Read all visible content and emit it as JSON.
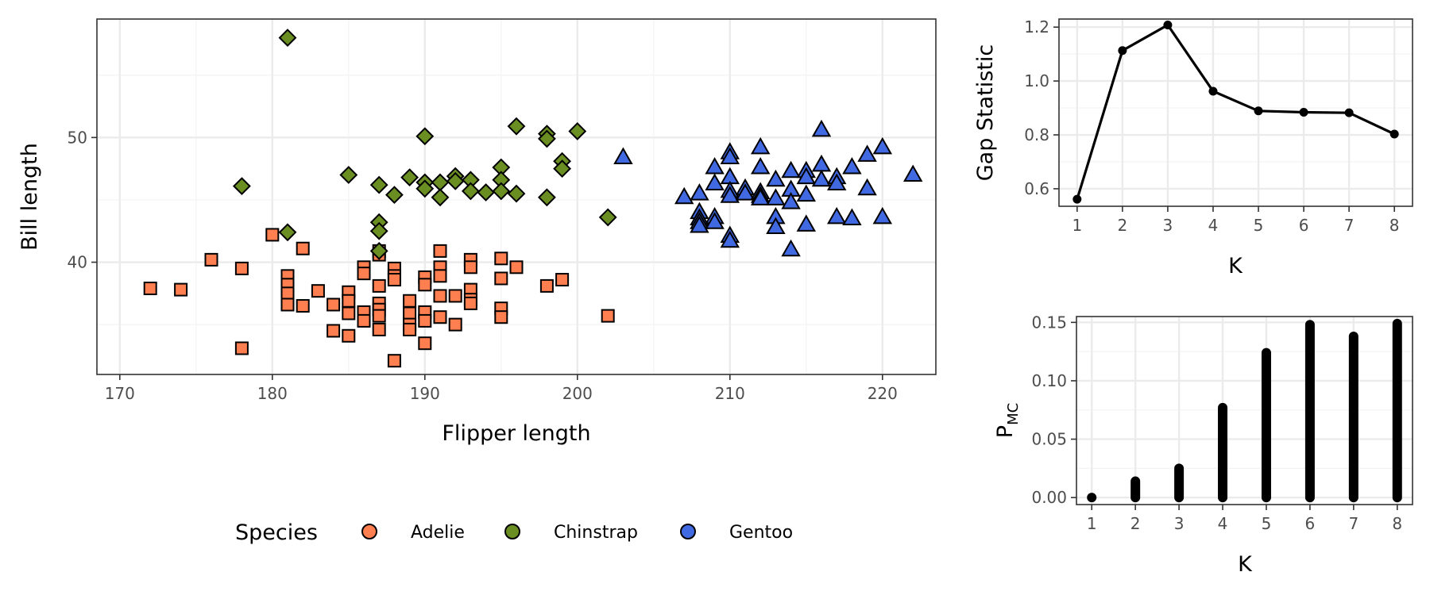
{
  "chart_data": [
    {
      "type": "scatter",
      "xlabel": "Flipper length",
      "ylabel": "Bill length",
      "xlim": [
        168.5,
        223.5
      ],
      "ylim": [
        31,
        59.5
      ],
      "x_ticks": [
        170,
        180,
        190,
        200,
        210,
        220
      ],
      "y_ticks": [
        40,
        50
      ],
      "grid": true,
      "legend": {
        "title": "Species",
        "placement": "bottom",
        "entries": [
          "Adelie",
          "Chinstrap",
          "Gentoo"
        ]
      },
      "series": [
        {
          "name": "Adelie",
          "color": "#FF7F50",
          "marker": "square",
          "points": [
            [
              172,
              37.9
            ],
            [
              174,
              37.8
            ],
            [
              176,
              40.2
            ],
            [
              178,
              39.5
            ],
            [
              178,
              33.1
            ],
            [
              180,
              42.2
            ],
            [
              181,
              38.9
            ],
            [
              181,
              38.2
            ],
            [
              181,
              37.5
            ],
            [
              181,
              36.6
            ],
            [
              182,
              41.1
            ],
            [
              182,
              36.5
            ],
            [
              183,
              37.7
            ],
            [
              184,
              36.6
            ],
            [
              184,
              34.5
            ],
            [
              185,
              37.6
            ],
            [
              185,
              36.9
            ],
            [
              185,
              35.9
            ],
            [
              185,
              34.1
            ],
            [
              186,
              39.6
            ],
            [
              186,
              39.1
            ],
            [
              186,
              36.0
            ],
            [
              186,
              35.3
            ],
            [
              187,
              40.9
            ],
            [
              187,
              40.6
            ],
            [
              187,
              38.1
            ],
            [
              187,
              36.7
            ],
            [
              187,
              36.2
            ],
            [
              187,
              35.7
            ],
            [
              187,
              34.6
            ],
            [
              188,
              39.5
            ],
            [
              188,
              38.9
            ],
            [
              188,
              38.6
            ],
            [
              188,
              32.1
            ],
            [
              189,
              36.9
            ],
            [
              189,
              35.9
            ],
            [
              189,
              35.0
            ],
            [
              189,
              34.6
            ],
            [
              190,
              38.8
            ],
            [
              190,
              38.2
            ],
            [
              190,
              36.0
            ],
            [
              190,
              35.3
            ],
            [
              190,
              33.5
            ],
            [
              191,
              40.9
            ],
            [
              191,
              39.6
            ],
            [
              191,
              38.9
            ],
            [
              191,
              37.3
            ],
            [
              191,
              35.6
            ],
            [
              192,
              37.3
            ],
            [
              192,
              35.0
            ],
            [
              193,
              40.2
            ],
            [
              193,
              39.6
            ],
            [
              193,
              37.8
            ],
            [
              193,
              37.0
            ],
            [
              193,
              36.7
            ],
            [
              195,
              40.3
            ],
            [
              195,
              38.7
            ],
            [
              195,
              36.3
            ],
            [
              195,
              35.6
            ],
            [
              196,
              39.6
            ],
            [
              198,
              38.1
            ],
            [
              199,
              38.6
            ],
            [
              202,
              35.7
            ]
          ]
        },
        {
          "name": "Chinstrap",
          "color": "#6B8E23",
          "marker": "diamond",
          "points": [
            [
              181,
              58.0
            ],
            [
              178,
              46.1
            ],
            [
              181,
              42.4
            ],
            [
              185,
              47.0
            ],
            [
              187,
              46.2
            ],
            [
              187,
              43.2
            ],
            [
              187,
              42.5
            ],
            [
              187,
              40.9
            ],
            [
              188,
              45.4
            ],
            [
              189,
              46.8
            ],
            [
              190,
              50.1
            ],
            [
              190,
              46.4
            ],
            [
              190,
              45.9
            ],
            [
              191,
              46.4
            ],
            [
              191,
              45.2
            ],
            [
              192,
              46.9
            ],
            [
              192,
              46.5
            ],
            [
              193,
              46.6
            ],
            [
              193,
              45.7
            ],
            [
              194,
              45.6
            ],
            [
              195,
              47.6
            ],
            [
              195,
              46.6
            ],
            [
              195,
              45.7
            ],
            [
              196,
              50.9
            ],
            [
              196,
              45.5
            ],
            [
              198,
              50.3
            ],
            [
              198,
              49.9
            ],
            [
              198,
              45.2
            ],
            [
              199,
              48.1
            ],
            [
              199,
              47.5
            ],
            [
              200,
              50.5
            ],
            [
              202,
              43.6
            ]
          ]
        },
        {
          "name": "Gentoo",
          "color": "#4169E1",
          "marker": "triangle",
          "points": [
            [
              203,
              48.4
            ],
            [
              207,
              45.2
            ],
            [
              208,
              45.5
            ],
            [
              208,
              44.0
            ],
            [
              208,
              43.5
            ],
            [
              208,
              43.2
            ],
            [
              208,
              42.9
            ],
            [
              209,
              47.6
            ],
            [
              209,
              46.3
            ],
            [
              209,
              43.6
            ],
            [
              209,
              43.2
            ],
            [
              210,
              48.8
            ],
            [
              210,
              48.4
            ],
            [
              210,
              46.8
            ],
            [
              210,
              45.7
            ],
            [
              210,
              45.3
            ],
            [
              210,
              42.1
            ],
            [
              210,
              41.7
            ],
            [
              211,
              45.9
            ],
            [
              211,
              45.5
            ],
            [
              212,
              49.2
            ],
            [
              212,
              47.6
            ],
            [
              212,
              45.6
            ],
            [
              212,
              45.3
            ],
            [
              212,
              45.1
            ],
            [
              213,
              46.6
            ],
            [
              213,
              45.1
            ],
            [
              213,
              43.6
            ],
            [
              213,
              42.8
            ],
            [
              214,
              47.3
            ],
            [
              214,
              45.8
            ],
            [
              214,
              44.8
            ],
            [
              214,
              41.0
            ],
            [
              215,
              47.3
            ],
            [
              215,
              46.8
            ],
            [
              215,
              45.4
            ],
            [
              215,
              43.0
            ],
            [
              216,
              50.6
            ],
            [
              216,
              47.8
            ],
            [
              216,
              46.6
            ],
            [
              217,
              46.8
            ],
            [
              217,
              46.3
            ],
            [
              217,
              43.6
            ],
            [
              218,
              47.6
            ],
            [
              218,
              43.5
            ],
            [
              219,
              48.6
            ],
            [
              219,
              45.9
            ],
            [
              220,
              49.2
            ],
            [
              220,
              43.6
            ],
            [
              222,
              47.0
            ]
          ]
        }
      ]
    },
    {
      "type": "line",
      "xlabel": "K",
      "ylabel": "Gap Statistic",
      "x": [
        1,
        2,
        3,
        4,
        5,
        6,
        7,
        8
      ],
      "y": [
        0.561,
        1.113,
        1.208,
        0.962,
        0.889,
        0.884,
        0.882,
        0.803
      ],
      "xlim": [
        0.6,
        8.4
      ],
      "ylim": [
        0.535,
        1.23
      ],
      "x_ticks": [
        1,
        2,
        3,
        4,
        5,
        6,
        7,
        8
      ],
      "y_ticks": [
        0.6,
        0.8,
        1.0,
        1.2
      ],
      "grid": true
    },
    {
      "type": "bar",
      "xlabel": "K",
      "ylabel_main": "P",
      "ylabel_sub": "MC",
      "categories": [
        "1",
        "2",
        "3",
        "4",
        "5",
        "6",
        "7",
        "8"
      ],
      "values": [
        0.0,
        0.014,
        0.025,
        0.077,
        0.124,
        0.148,
        0.138,
        0.149
      ],
      "xlim": [
        0.65,
        8.35
      ],
      "ylim": [
        -0.006,
        0.155
      ],
      "y_ticks": [
        0.0,
        0.05,
        0.1,
        0.15
      ],
      "y_tick_labels": [
        "0.00",
        "0.05",
        "0.10",
        "0.15"
      ],
      "grid": true
    }
  ]
}
